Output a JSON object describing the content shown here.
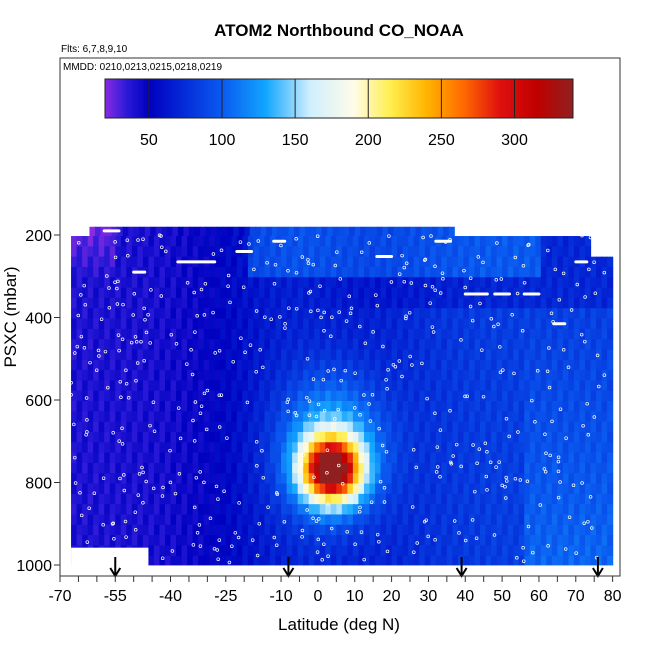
{
  "chart_data": {
    "type": "heatmap",
    "title": "ATOM2 Northbound CO_NOAA",
    "flights_note": "Flts: 6,7,8,9,10",
    "dates_note": "MMDD: 0210,0213,0215,0218,0219",
    "xlabel": "Latitude (deg N)",
    "ylabel": "PSXC (mbar)",
    "xlim": [
      -70,
      82
    ],
    "ylim": [
      1000,
      170
    ],
    "x_ticks": [
      -70,
      -55,
      -40,
      -25,
      -10,
      0,
      10,
      20,
      30,
      40,
      50,
      60,
      70,
      80
    ],
    "y_ticks": [
      200,
      400,
      600,
      800,
      1000
    ],
    "colorbar": {
      "range": [
        20,
        340
      ],
      "ticks": [
        50,
        100,
        150,
        200,
        250,
        300
      ],
      "stops": [
        {
          "v": 20,
          "c": "#8a2be2"
        },
        {
          "v": 35,
          "c": "#2a1ad8"
        },
        {
          "v": 50,
          "c": "#0000c0"
        },
        {
          "v": 100,
          "c": "#0a5af0"
        },
        {
          "v": 130,
          "c": "#12a6ff"
        },
        {
          "v": 160,
          "c": "#cfefff"
        },
        {
          "v": 190,
          "c": "#fffbe8"
        },
        {
          "v": 215,
          "c": "#ffef50"
        },
        {
          "v": 240,
          "c": "#ffb400"
        },
        {
          "v": 265,
          "c": "#ff6a00"
        },
        {
          "v": 290,
          "c": "#e01010"
        },
        {
          "v": 315,
          "c": "#c00000"
        },
        {
          "v": 340,
          "c": "#902020"
        }
      ]
    },
    "profile_latitudes": [
      -55,
      -8,
      39,
      76
    ],
    "pressure_levels": [
      190,
      215,
      240,
      265,
      290,
      315,
      340,
      365,
      390,
      415,
      440,
      465,
      490,
      515,
      540,
      565,
      590,
      615,
      640,
      665,
      690,
      715,
      740,
      765,
      790,
      815,
      840,
      865,
      890,
      915,
      940,
      965,
      990
    ]
  }
}
